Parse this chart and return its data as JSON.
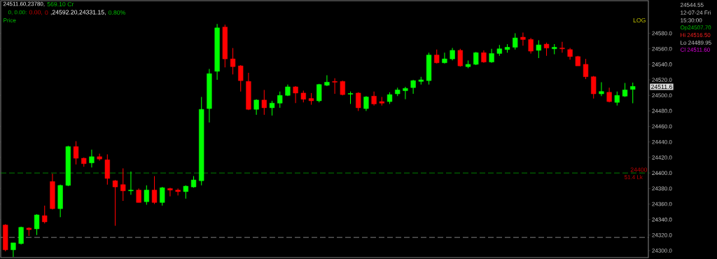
{
  "chart_data": {
    "type": "candlestick",
    "categories": [
      null,
      null,
      null,
      null,
      null,
      null,
      null,
      null,
      null,
      null,
      null,
      null,
      null,
      null,
      null,
      null,
      null,
      null,
      null,
      null,
      null,
      null,
      null,
      null,
      null,
      null,
      null,
      null,
      null,
      null,
      null,
      null,
      null,
      null,
      null,
      null,
      null,
      null,
      null,
      null,
      null,
      null,
      null,
      null,
      null,
      null,
      null,
      null,
      null,
      null,
      null,
      null,
      null,
      null,
      null,
      null,
      null,
      null,
      null,
      null,
      null,
      null,
      null,
      null,
      null,
      null,
      null,
      null,
      null,
      null,
      null,
      null,
      null,
      null,
      null,
      null,
      null,
      null,
      null,
      null,
      null
    ],
    "ohlc": [
      [
        24333,
        24334,
        24299,
        24301
      ],
      [
        24301,
        24310,
        24292,
        24310
      ],
      [
        24309,
        24331,
        24308,
        24330
      ],
      [
        24329,
        24330,
        24319,
        24327
      ],
      [
        24328,
        24347,
        24320,
        24346
      ],
      [
        24345,
        24358,
        24335,
        24337
      ],
      [
        24389,
        24399,
        24353,
        24354
      ],
      [
        24354,
        24385,
        24343,
        24384
      ],
      [
        24384,
        24435,
        24383,
        24434
      ],
      [
        24434,
        24441,
        24411,
        24419
      ],
      [
        24419,
        24420,
        24408,
        24412
      ],
      [
        24413,
        24430,
        24407,
        24421
      ],
      [
        24421,
        24425,
        24416,
        24418
      ],
      [
        24417,
        24424,
        24385,
        24393
      ],
      [
        24390,
        24391,
        24332,
        24382
      ],
      [
        24385,
        24406,
        24364,
        24377
      ],
      [
        24377,
        24402,
        24372,
        24378
      ],
      [
        24378,
        24380,
        24362,
        24362
      ],
      [
        24363,
        24384,
        24359,
        24378
      ],
      [
        24378,
        24396,
        24360,
        24362
      ],
      [
        24362,
        24382,
        24358,
        24381
      ],
      [
        24380,
        24381,
        24370,
        24378
      ],
      [
        24378,
        24380,
        24371,
        24376
      ],
      [
        24376,
        24384,
        24367,
        24383
      ],
      [
        24382,
        24396,
        24381,
        24391
      ],
      [
        24390,
        24498,
        24384,
        24482
      ],
      [
        24483,
        24534,
        24465,
        24528
      ],
      [
        24531,
        24592,
        24520,
        24587
      ],
      [
        24588,
        24591,
        24536,
        24547
      ],
      [
        24547,
        24561,
        24527,
        24537
      ],
      [
        24538,
        24539,
        24505,
        24519
      ],
      [
        24518,
        24529,
        24481,
        24482
      ],
      [
        24482,
        24495,
        24475,
        24494
      ],
      [
        24494,
        24507,
        24475,
        24484
      ],
      [
        24484,
        24493,
        24474,
        24490
      ],
      [
        24490,
        24505,
        24484,
        24500
      ],
      [
        24500,
        24514,
        24499,
        24511
      ],
      [
        24511,
        24512,
        24490,
        24503
      ],
      [
        24503,
        24506,
        24491,
        24495
      ],
      [
        24496,
        24503,
        24488,
        24493
      ],
      [
        24493,
        24515,
        24491,
        24514
      ],
      [
        24513,
        24526,
        24512,
        24517
      ],
      [
        24518,
        24522,
        24502,
        24517
      ],
      [
        24518,
        24519,
        24500,
        24501
      ],
      [
        24501.5,
        24505,
        24489,
        24502.5
      ],
      [
        24503,
        24504,
        24480,
        24484
      ],
      [
        24483,
        24499,
        24480,
        24498
      ],
      [
        24499,
        24505,
        24487,
        24489
      ],
      [
        24492,
        24498,
        24487,
        24490
      ],
      [
        24492,
        24504,
        24489,
        24501
      ],
      [
        24502,
        24510,
        24499,
        24507
      ],
      [
        24506,
        24511,
        24495,
        24509
      ],
      [
        24510,
        24520,
        24502,
        24519
      ],
      [
        24518,
        24524,
        24514,
        24520
      ],
      [
        24519,
        24555,
        24514,
        24552
      ],
      [
        24552,
        24559,
        24541,
        24542
      ],
      [
        24542,
        24555,
        24541,
        24547
      ],
      [
        24547,
        24561,
        24545,
        24558
      ],
      [
        24558,
        24560,
        24537,
        24538
      ],
      [
        24537,
        24545,
        24535,
        24540
      ],
      [
        24540,
        24556,
        24539,
        24555
      ],
      [
        24555,
        24558,
        24542,
        24543
      ],
      [
        24543,
        24560,
        24542,
        24554
      ],
      [
        24554,
        24565,
        24551,
        24560
      ],
      [
        24559,
        24566,
        24555,
        24562
      ],
      [
        24562,
        24580,
        24559,
        24574
      ],
      [
        24575,
        24581,
        24564,
        24572
      ],
      [
        24572,
        24574,
        24554,
        24557
      ],
      [
        24558,
        24571,
        24548,
        24565
      ],
      [
        24566,
        24568,
        24551,
        24561
      ],
      [
        24560,
        24566,
        24553,
        24562
      ],
      [
        24561,
        24569,
        24555,
        24560
      ],
      [
        24559,
        24561,
        24546,
        24550
      ],
      [
        24550,
        24551,
        24538,
        24538
      ],
      [
        24540,
        24547,
        24521,
        24524
      ],
      [
        24524,
        24525,
        24496,
        24502
      ],
      [
        24502,
        24517,
        24499,
        24505
      ],
      [
        24504,
        24510,
        24491,
        24492
      ],
      [
        24491,
        24505,
        24487,
        24500
      ],
      [
        24499,
        24516,
        24498,
        24507
      ],
      [
        24507.7,
        24516.5,
        24489.95,
        24511.6
      ]
    ],
    "colors": [
      "#ff0000",
      "#00ff00",
      "#00ff00",
      "#ff0000",
      "#00ff00",
      "#ff0000",
      "#ff0000",
      "#00ff00",
      "#00ff00",
      "#ff0000",
      "#ff0000",
      "#00ff00",
      "#ff0000",
      "#ff0000",
      "#ff0000",
      "#ff0000",
      "#00ff00",
      "#ff0000",
      "#00ff00",
      "#ff0000",
      "#00ff00",
      "#ff0000",
      "#ff0000",
      "#00ff00",
      "#00ff00",
      "#00ff00",
      "#00ff00",
      "#00ff00",
      "#ff0000",
      "#ff0000",
      "#ff0000",
      "#ff0000",
      "#00ff00",
      "#ff0000",
      "#00ff00",
      "#00ff00",
      "#00ff00",
      "#ff0000",
      "#ff0000",
      "#ff0000",
      "#00ff00",
      "#00ff00",
      "#ff0000",
      "#ff0000",
      "#00ff00",
      "#ff0000",
      "#00ff00",
      "#ff0000",
      "#ff0000",
      "#00ff00",
      "#00ff00",
      "#00ff00",
      "#00ff00",
      "#00ff00",
      "#00ff00",
      "#ff0000",
      "#00ff00",
      "#00ff00",
      "#ff0000",
      "#00ff00",
      "#00ff00",
      "#ff0000",
      "#00ff00",
      "#00ff00",
      "#00ff00",
      "#00ff00",
      "#ff0000",
      "#ff0000",
      "#00ff00",
      "#ff0000",
      "#00ff00",
      "#ff0000",
      "#ff0000",
      "#ff0000",
      "#ff0000",
      "#ff0000",
      "#00ff00",
      "#ff0000",
      "#00ff00",
      "#00ff00",
      "#00ff00"
    ],
    "ylim": [
      24291,
      24622
    ],
    "yticks": [
      {
        "value": 24300,
        "label": "24300.0"
      },
      {
        "value": 24320,
        "label": "24320.0"
      },
      {
        "value": 24340,
        "label": "24340.0"
      },
      {
        "value": 24360,
        "label": "24360.0"
      },
      {
        "value": 24380,
        "label": "24380.0"
      },
      {
        "value": 24400,
        "label": "24400.0"
      },
      {
        "value": 24420,
        "label": "24420.0"
      },
      {
        "value": 24440,
        "label": "24440.0"
      },
      {
        "value": 24460,
        "label": "24460.0"
      },
      {
        "value": 24480,
        "label": "24480.0"
      },
      {
        "value": 24500,
        "label": "24500.0"
      },
      {
        "value": 24520,
        "label": "24520.0"
      },
      {
        "value": 24540,
        "label": "24540.0"
      },
      {
        "value": 24560,
        "label": "24560.0"
      },
      {
        "value": 24580,
        "label": "24580.0"
      }
    ],
    "ref_lines": [
      {
        "axis": "y",
        "value": 24400,
        "label": "24400",
        "color": "#00a000",
        "line_style": "dashed"
      },
      {
        "axis": "y",
        "value": 24317,
        "color": "#a0a0a0",
        "line_style": "dashed"
      }
    ],
    "annotations": [
      "24511.60,23780,",
      "569.10  Cr",
      "0,   0.00:",
      "0.00,",
      "0",
      ",24592.20,24331.15,",
      "0.80%",
      "Price",
      "LOG",
      "24544.55",
      "12-07-24 Fri",
      "15:30:00",
      "Op24507.70",
      "Hi  24516.50",
      "Lo  24489.95",
      "Cl  24511.60",
      "24511.6",
      "51.4 Lk"
    ]
  }
}
